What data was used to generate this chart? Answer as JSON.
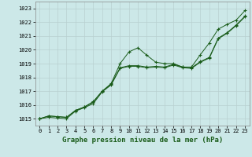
{
  "title": "Graphe pression niveau de la mer (hPa)",
  "title_fontsize": 6.5,
  "bg_color": "#cce8e8",
  "grid_color": "#b8d0d0",
  "line_color": "#1a5c1a",
  "marker": "+",
  "markersize": 3.5,
  "linewidth": 0.7,
  "markeredgewidth": 0.8,
  "ylim": [
    1014.5,
    1023.5
  ],
  "xlim": [
    -0.5,
    23.5
  ],
  "yticks": [
    1015,
    1016,
    1017,
    1018,
    1019,
    1020,
    1021,
    1022,
    1023
  ],
  "xticks": [
    0,
    1,
    2,
    3,
    4,
    5,
    6,
    7,
    8,
    9,
    10,
    11,
    12,
    13,
    14,
    15,
    16,
    17,
    18,
    19,
    20,
    21,
    22,
    23
  ],
  "tick_fontsize": 5.0,
  "series1": [
    1015.0,
    1015.2,
    1015.15,
    1015.1,
    1015.6,
    1015.85,
    1016.25,
    1017.0,
    1017.55,
    1019.0,
    1019.85,
    1020.15,
    1019.6,
    1019.1,
    1019.0,
    1019.0,
    1018.75,
    1018.75,
    1019.65,
    1020.5,
    1021.5,
    1021.85,
    1022.15,
    1022.85
  ],
  "series2": [
    1015.0,
    1015.2,
    1015.15,
    1015.1,
    1015.6,
    1015.85,
    1016.2,
    1017.0,
    1017.5,
    1018.7,
    1018.85,
    1018.85,
    1018.75,
    1018.8,
    1018.75,
    1018.95,
    1018.75,
    1018.7,
    1019.15,
    1019.45,
    1020.85,
    1021.25,
    1021.8,
    1022.45
  ],
  "series3": [
    1015.0,
    1015.1,
    1015.05,
    1015.0,
    1015.55,
    1015.8,
    1016.1,
    1016.95,
    1017.45,
    1018.65,
    1018.8,
    1018.8,
    1018.7,
    1018.75,
    1018.7,
    1018.9,
    1018.7,
    1018.65,
    1019.1,
    1019.4,
    1020.8,
    1021.2,
    1021.75,
    1022.4
  ]
}
